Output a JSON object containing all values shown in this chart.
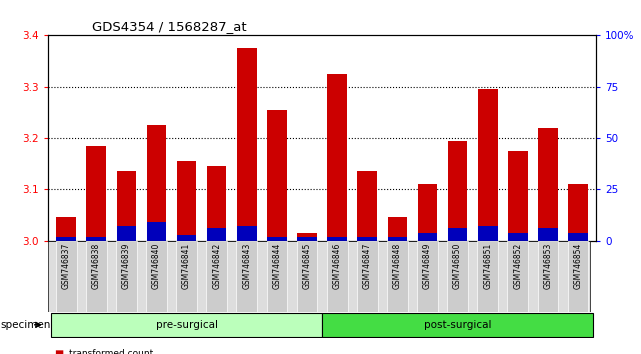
{
  "title": "GDS4354 / 1568287_at",
  "samples": [
    "GSM746837",
    "GSM746838",
    "GSM746839",
    "GSM746840",
    "GSM746841",
    "GSM746842",
    "GSM746843",
    "GSM746844",
    "GSM746845",
    "GSM746846",
    "GSM746847",
    "GSM746848",
    "GSM746849",
    "GSM746850",
    "GSM746851",
    "GSM746852",
    "GSM746853",
    "GSM746854"
  ],
  "red_values": [
    3.047,
    3.185,
    3.135,
    3.225,
    3.155,
    3.145,
    3.375,
    3.255,
    3.015,
    3.325,
    3.135,
    3.047,
    3.11,
    3.195,
    3.295,
    3.175,
    3.22,
    3.11
  ],
  "blue_values_pct": [
    2,
    2,
    7,
    9,
    3,
    6,
    7,
    2,
    2,
    2,
    2,
    2,
    4,
    6,
    7,
    4,
    6,
    4
  ],
  "pre_surgical_count": 9,
  "post_surgical_count": 9,
  "ylim_left": [
    3.0,
    3.4
  ],
  "ylim_right": [
    0,
    100
  ],
  "yticks_left": [
    3.0,
    3.1,
    3.2,
    3.3,
    3.4
  ],
  "yticks_right": [
    0,
    25,
    50,
    75,
    100
  ],
  "ytick_labels_right": [
    "0",
    "25",
    "50",
    "75",
    "100%"
  ],
  "bar_color_red": "#cc0000",
  "bar_color_blue": "#0000bb",
  "pre_surgical_color": "#bbffbb",
  "post_surgical_color": "#44dd44",
  "bg_color_ticks": "#cccccc",
  "bar_width": 0.65,
  "grid_color": "black",
  "grid_linestyle": "dotted"
}
